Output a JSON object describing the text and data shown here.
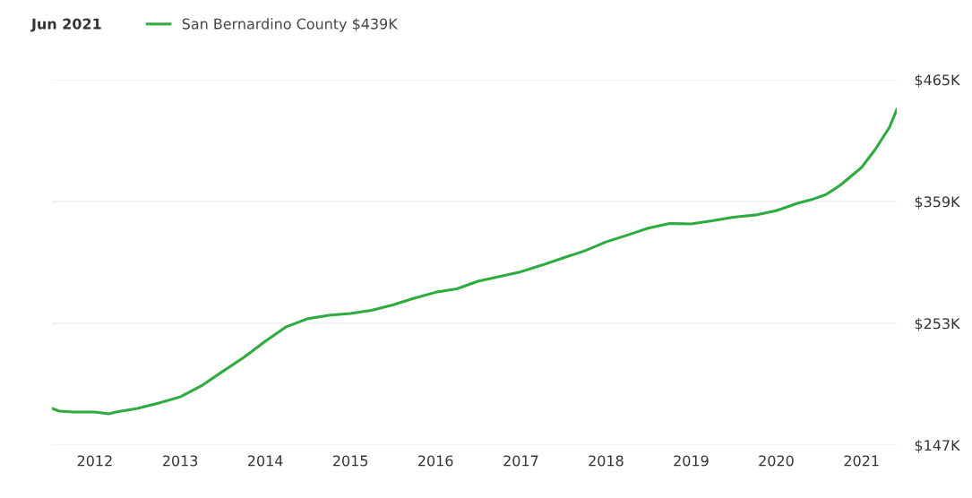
{
  "chart_data": {
    "type": "line",
    "title": "Jun 2021",
    "x": [
      "2011-07",
      "2011-08",
      "2011-10",
      "2012-01",
      "2012-03",
      "2012-04",
      "2012-07",
      "2012-10",
      "2013-01",
      "2013-04",
      "2013-07",
      "2013-10",
      "2014-01",
      "2014-04",
      "2014-07",
      "2014-10",
      "2015-01",
      "2015-04",
      "2015-07",
      "2015-10",
      "2016-01",
      "2016-04",
      "2016-07",
      "2017-01",
      "2017-04",
      "2017-07",
      "2017-10",
      "2018-01",
      "2018-04",
      "2018-07",
      "2018-10",
      "2019-01",
      "2019-04",
      "2019-07",
      "2019-10",
      "2020-01",
      "2020-04",
      "2020-06",
      "2020-08",
      "2020-10",
      "2021-01",
      "2021-03",
      "2021-05",
      "2021-06"
    ],
    "series": [
      {
        "name": "San Bernardino County $439K",
        "color": "#2eab3f",
        "values": [
          179,
          176.6,
          175.8,
          175.8,
          174.3,
          175.8,
          179,
          183.6,
          189,
          198.5,
          211,
          223.4,
          237.4,
          250,
          257,
          260,
          261.6,
          264.3,
          269,
          274.8,
          280,
          283,
          289.6,
          297.9,
          303.6,
          309.9,
          316,
          323.8,
          329.7,
          335.8,
          339.9,
          339.5,
          342.2,
          345.4,
          347.2,
          351,
          357.4,
          360.7,
          365,
          373,
          388.6,
          404.4,
          423.7,
          439
        ]
      }
    ],
    "xlim": [
      "2011-07",
      "2021-06"
    ],
    "xticks": [
      {
        "value": "2012",
        "label": "2012"
      },
      {
        "value": "2013",
        "label": "2013"
      },
      {
        "value": "2014",
        "label": "2014"
      },
      {
        "value": "2015",
        "label": "2015"
      },
      {
        "value": "2016",
        "label": "2016"
      },
      {
        "value": "2017",
        "label": "2017"
      },
      {
        "value": "2018",
        "label": "2018"
      },
      {
        "value": "2019",
        "label": "2019"
      },
      {
        "value": "2020",
        "label": "2020"
      },
      {
        "value": "2021",
        "label": "2021"
      }
    ],
    "ylim": [
      147,
      465
    ],
    "yticks": [
      {
        "value": 147,
        "label": "$147K"
      },
      {
        "value": 253,
        "label": "$253K"
      },
      {
        "value": 359,
        "label": "$359K"
      },
      {
        "value": 465,
        "label": "$465K"
      }
    ],
    "grid": "y",
    "legend": "top left",
    "marker": "none",
    "line_style": "solid"
  }
}
